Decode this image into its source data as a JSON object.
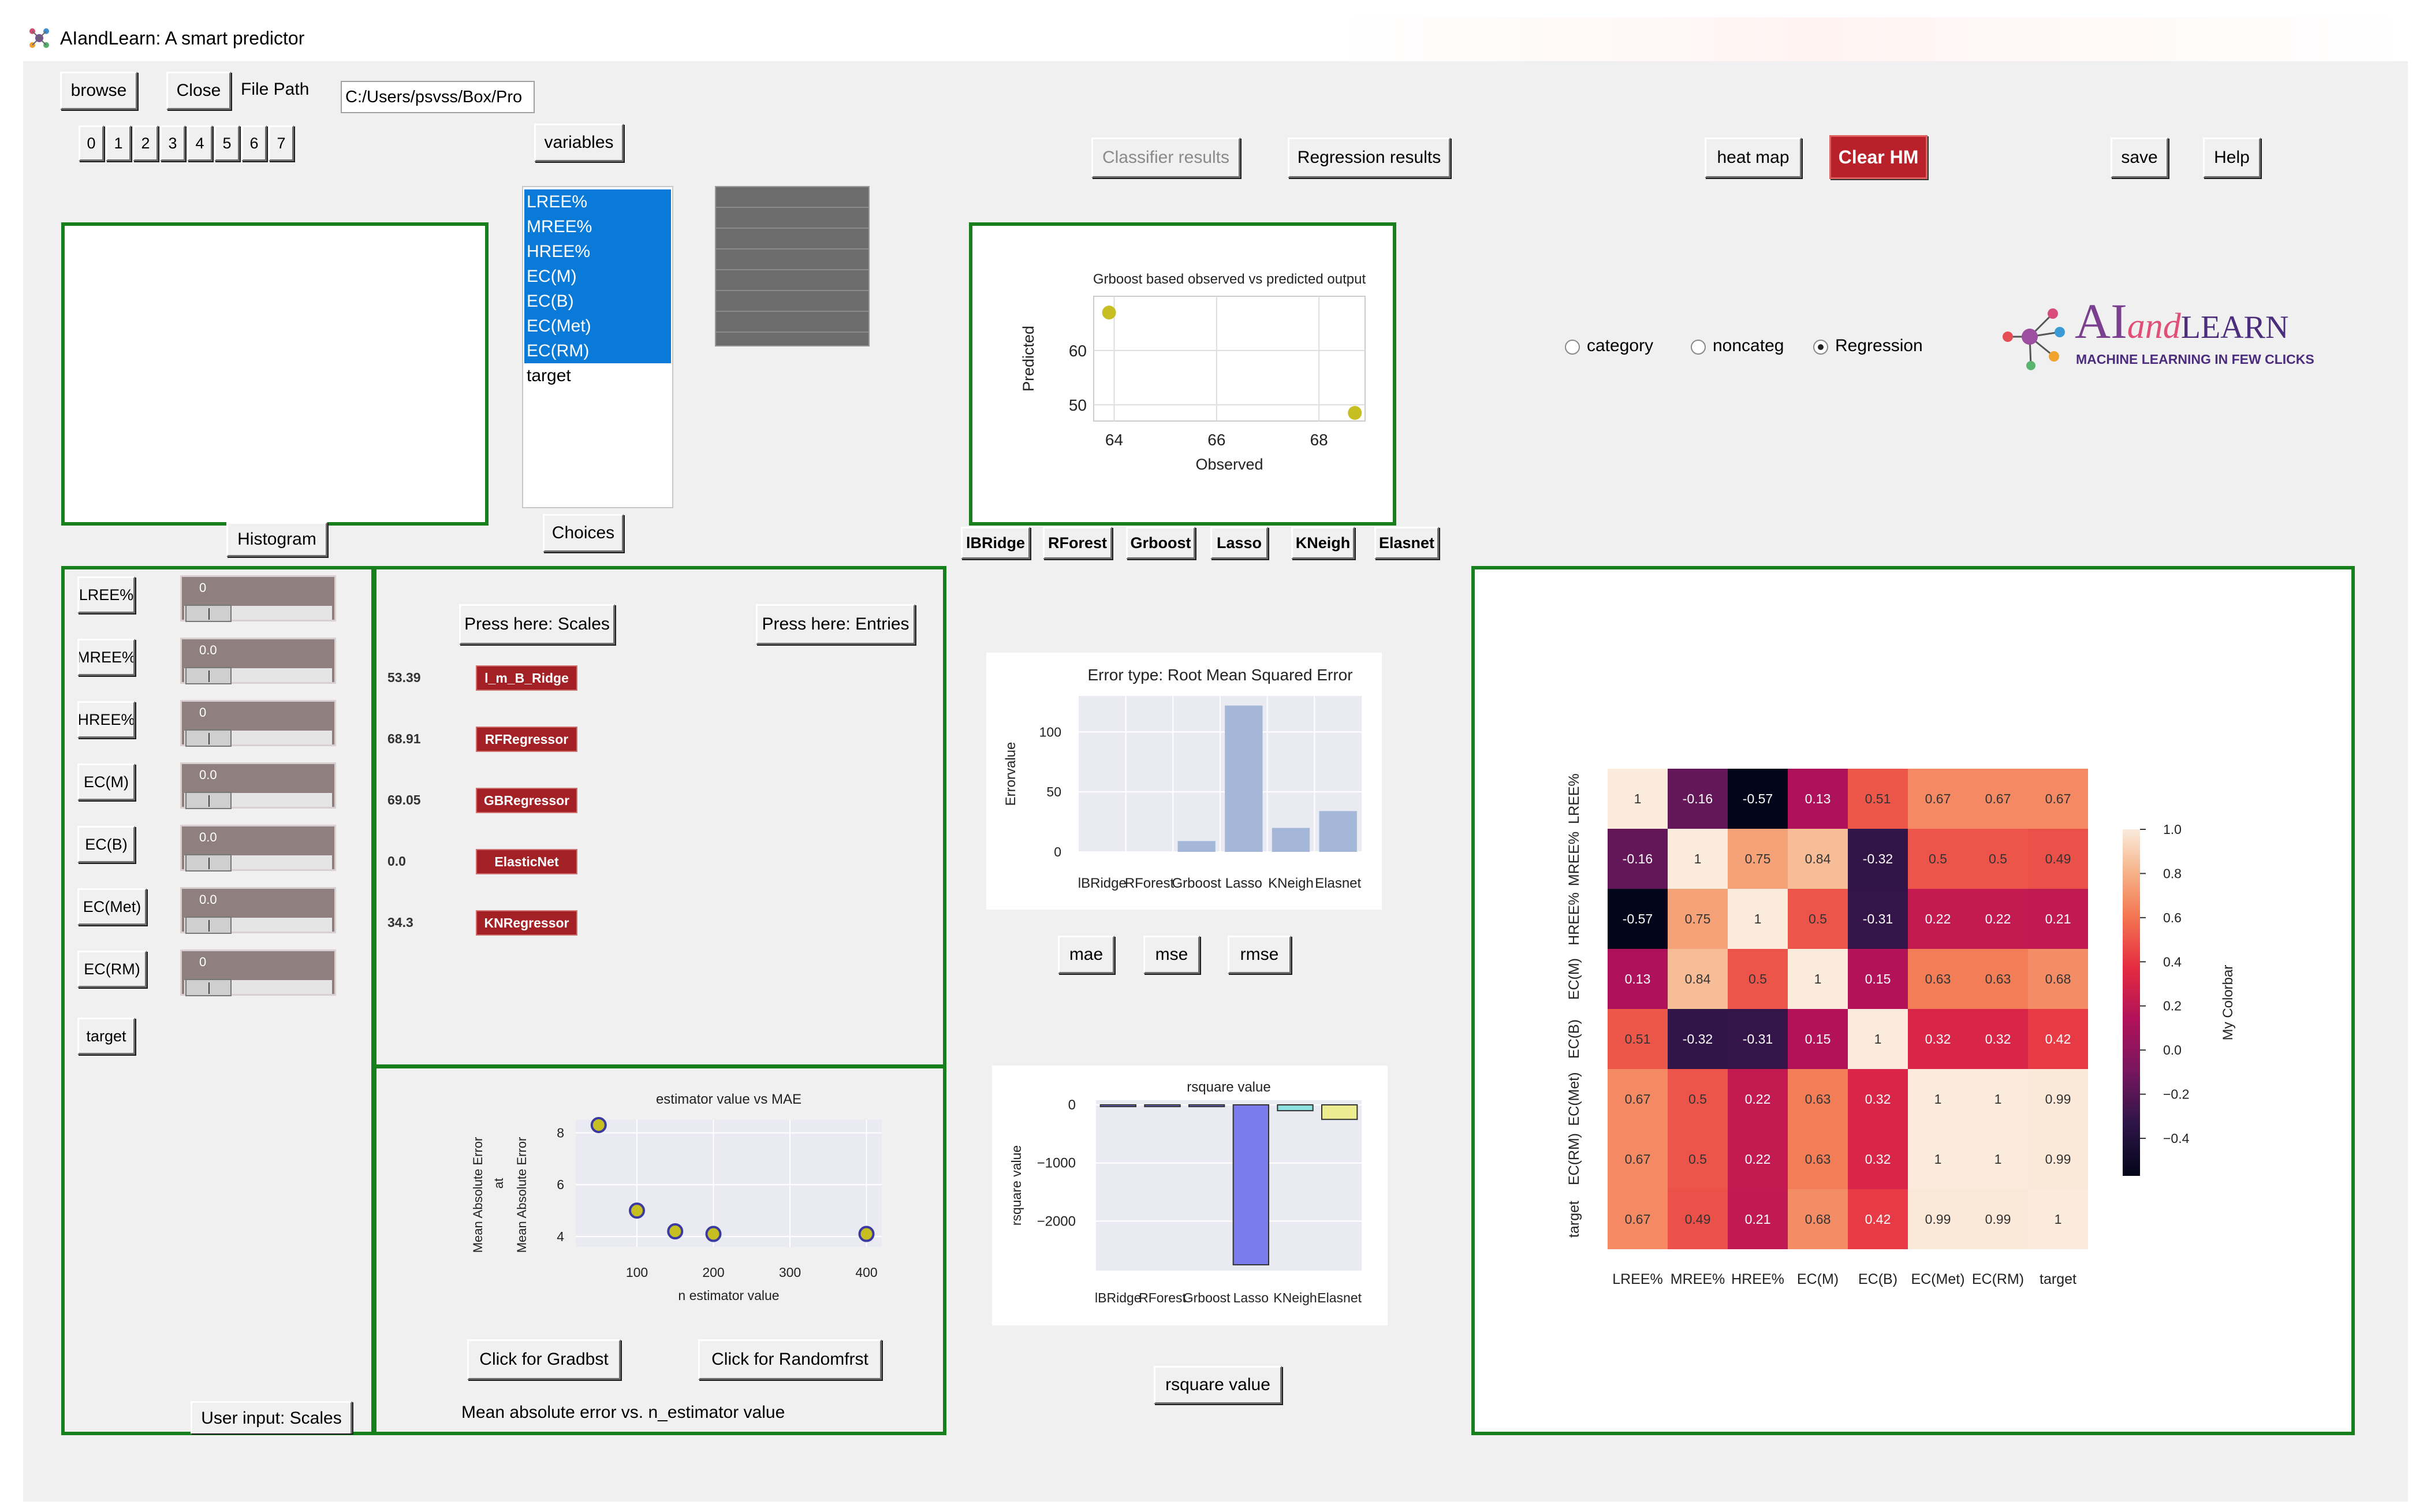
{
  "window": {
    "title": "AIandLearn: A smart predictor"
  },
  "toolbar": {
    "browse": "browse",
    "close": "Close",
    "file_path_label": "File Path",
    "file_path_value": "C:/Users/psvss/Box/Pro",
    "digits": [
      "0",
      "1",
      "2",
      "3",
      "4",
      "5",
      "6",
      "7"
    ],
    "variables": "variables",
    "classifier_results": "Classifier results",
    "regression_results": "Regression results",
    "heat_map": "heat map",
    "clear_hm": "Clear HM",
    "save": "save",
    "help": "Help"
  },
  "variable_list": {
    "items": [
      "LREE%",
      "MREE%",
      "HREE%",
      "EC(M)",
      "EC(B)",
      "EC(Met)",
      "EC(RM)",
      "target"
    ],
    "selected_count": 7,
    "choices_button": "Choices"
  },
  "histogram_button": "Histogram",
  "mode_radios": [
    {
      "label": "category",
      "checked": false
    },
    {
      "label": "noncateg",
      "checked": false
    },
    {
      "label": "Regression",
      "checked": true
    }
  ],
  "logo": {
    "text_ai": "AI",
    "text_and": "and",
    "text_learn": "LEARN",
    "tagline": "MACHINE LEARNING IN FEW CLICKS"
  },
  "model_buttons": [
    "lBRidge",
    "RForest",
    "Grboost",
    "Lasso",
    "KNeigh",
    "Elasnet"
  ],
  "inputs": {
    "rows": [
      {
        "label": "LREE%",
        "value": "0"
      },
      {
        "label": "MREE%",
        "value": "0.0"
      },
      {
        "label": "HREE%",
        "value": "0"
      },
      {
        "label": "EC(M)",
        "value": "0.0"
      },
      {
        "label": "EC(B)",
        "value": "0.0"
      },
      {
        "label": "EC(Met)",
        "value": "0.0"
      },
      {
        "label": "EC(RM)",
        "value": "0"
      }
    ],
    "target_label": "target",
    "footer_label": "User input: Scales"
  },
  "predictions": {
    "scales_button": "Press here: Scales",
    "entries_button": "Press here: Entries",
    "rows": [
      {
        "value": "53.39",
        "model": "l_m_B_Ridge"
      },
      {
        "value": "68.91",
        "model": "RFRegressor"
      },
      {
        "value": "69.05",
        "model": "GBRegressor"
      },
      {
        "value": "0.0",
        "model": "ElasticNet"
      },
      {
        "value": "34.3",
        "model": "KNRegressor"
      }
    ]
  },
  "estimator_panel": {
    "gradbst_button": "Click for Gradbst",
    "randomfrst_button": "Click for Randomfrst",
    "caption": "Mean absolute error vs. n_estimator value"
  },
  "error_buttons": [
    "mae",
    "mse",
    "rmse"
  ],
  "rsquare_button": "rsquare value",
  "chart_data": [
    {
      "type": "scatter",
      "title": "Grboost based observed vs predicted output",
      "xlabel": "Observed",
      "ylabel": "Predicted",
      "x_ticks": [
        64,
        66,
        68
      ],
      "y_ticks": [
        50,
        60
      ],
      "xlim": [
        63.6,
        68.9
      ],
      "ylim": [
        47,
        70
      ],
      "points": [
        {
          "x": 63.9,
          "y": 67
        },
        {
          "x": 68.7,
          "y": 48.5
        }
      ],
      "point_color": "#c7bf22"
    },
    {
      "type": "bar",
      "title": "Error type: Root Mean Squared Error",
      "xlabel": "",
      "ylabel": "Errorvalue",
      "categories": [
        "lBRidge",
        "RForest",
        "Grboost",
        "Lasso",
        "KNeigh",
        "Elasnet"
      ],
      "values": [
        0,
        0,
        9,
        122,
        20,
        34
      ],
      "y_ticks": [
        0,
        50,
        100
      ],
      "ylim": [
        0,
        130
      ],
      "bar_color": "#a4b7d9"
    },
    {
      "type": "scatter",
      "title": "estimator value vs MAE",
      "xlabel": "n estimator value",
      "ylabel": "Mean Absolute Error",
      "ylabel2": "Mean Absolute Error",
      "ylabel_extra": "at",
      "x_ticks": [
        100,
        200,
        300,
        400
      ],
      "y_ticks": [
        4,
        6,
        8
      ],
      "xlim": [
        20,
        420
      ],
      "ylim": [
        3.6,
        8.5
      ],
      "points": [
        {
          "x": 50,
          "y": 8.3
        },
        {
          "x": 100,
          "y": 5.0
        },
        {
          "x": 150,
          "y": 4.2
        },
        {
          "x": 200,
          "y": 4.1
        },
        {
          "x": 400,
          "y": 4.1
        }
      ],
      "point_color": "#c7bf22"
    },
    {
      "type": "bar",
      "title": "rsquare value",
      "xlabel": "",
      "ylabel": "rsquare value",
      "categories": [
        "lBRidge",
        "RForest",
        "Grboost",
        "Lasso",
        "KNeigh",
        "Elasnet"
      ],
      "values": [
        -5,
        -5,
        -30,
        -2750,
        -100,
        -250
      ],
      "colors": [
        "#6f6fea",
        "#6f6fea",
        "#6f6fea",
        "#7b7bee",
        "#8fe0e0",
        "#ecec90"
      ],
      "y_ticks": [
        0,
        -1000,
        -2000
      ],
      "ylim": [
        -2850,
        80
      ]
    },
    {
      "type": "heatmap",
      "labels": [
        "LREE%",
        "MREE%",
        "HREE%",
        "EC(M)",
        "EC(B)",
        "EC(Met)",
        "EC(RM)",
        "target"
      ],
      "matrix": [
        [
          1,
          -0.16,
          -0.57,
          0.13,
          0.51,
          0.67,
          0.67,
          0.67
        ],
        [
          -0.16,
          1,
          0.75,
          0.84,
          -0.32,
          0.5,
          0.5,
          0.49
        ],
        [
          -0.57,
          0.75,
          1,
          0.5,
          -0.31,
          0.22,
          0.22,
          0.21
        ],
        [
          0.13,
          0.84,
          0.5,
          1,
          0.15,
          0.63,
          0.63,
          0.68
        ],
        [
          0.51,
          -0.32,
          -0.31,
          0.15,
          1,
          0.32,
          0.32,
          0.42
        ],
        [
          0.67,
          0.5,
          0.22,
          0.63,
          0.32,
          1,
          1,
          0.99
        ],
        [
          0.67,
          0.5,
          0.22,
          0.63,
          0.32,
          1,
          1,
          0.99
        ],
        [
          0.67,
          0.49,
          0.21,
          0.68,
          0.42,
          0.99,
          0.99,
          1
        ]
      ],
      "display": [
        [
          "1",
          "-0.16",
          "-0.57",
          "0.13",
          "0.51",
          "0.67",
          "0.67",
          "0.67"
        ],
        [
          "-0.16",
          "1",
          "0.75",
          "0.84",
          "-0.32",
          "0.5",
          "0.5",
          "0.49"
        ],
        [
          "-0.57",
          "0.75",
          "1",
          "0.5",
          "-0.31",
          "0.22",
          "0.22",
          "0.21"
        ],
        [
          "0.13",
          "0.84",
          "0.5",
          "1",
          "0.15",
          "0.63",
          "0.63",
          "0.68"
        ],
        [
          "0.51",
          "-0.32",
          "-0.31",
          "0.15",
          "1",
          "0.32",
          "0.32",
          "0.42"
        ],
        [
          "0.67",
          "0.5",
          "0.22",
          "0.63",
          "0.32",
          "1",
          "1",
          "0.99"
        ],
        [
          "0.67",
          "0.5",
          "0.22",
          "0.63",
          "0.32",
          "1",
          "1",
          "0.99"
        ],
        [
          "0.67",
          "0.49",
          "0.21",
          "0.68",
          "0.42",
          "0.99",
          "0.99",
          "1"
        ]
      ],
      "colorbar_label": "My Colorbar",
      "colorbar_ticks": [
        "1.0",
        "0.8",
        "0.6",
        "0.4",
        "0.2",
        "0.0",
        "-0.2",
        "-0.4"
      ],
      "colorbar_tick_values": [
        1.0,
        0.8,
        0.6,
        0.4,
        0.2,
        0.0,
        -0.2,
        -0.4
      ],
      "vmin": -0.57,
      "vmax": 1.0
    }
  ]
}
